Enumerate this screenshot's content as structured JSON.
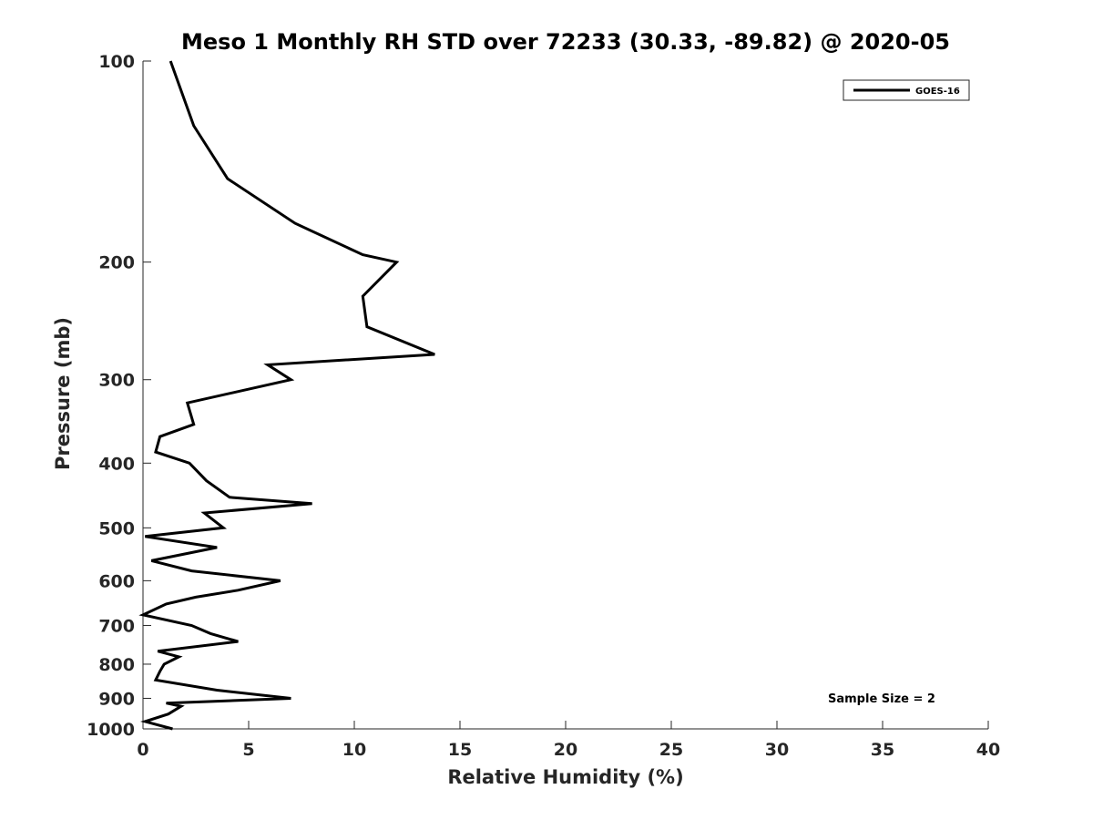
{
  "chart_data": {
    "type": "line",
    "title": "Meso 1 Monthly RH STD over 72233 (30.33, -89.82) @ 2020-05",
    "xlabel": "Relative Humidity (%)",
    "ylabel": "Pressure (mb)",
    "xlim": [
      0,
      40
    ],
    "ylim": [
      100,
      1000
    ],
    "y_scale": "log",
    "y_reversed": true,
    "x_ticks": [
      "0",
      "5",
      "10",
      "15",
      "20",
      "25",
      "30",
      "35",
      "40"
    ],
    "y_ticks": [
      "100",
      "200",
      "300",
      "400",
      "500",
      "600",
      "700",
      "800",
      "900",
      "1000"
    ],
    "grid": false,
    "legend_placement": "top-right",
    "annotation": "Sample Size = 2",
    "series": [
      {
        "name": "GOES-16",
        "color": "#000000",
        "points": [
          [
            1.3,
            100
          ],
          [
            2.4,
            125
          ],
          [
            4.0,
            150
          ],
          [
            7.2,
            175
          ],
          [
            10.4,
            195
          ],
          [
            12.0,
            200
          ],
          [
            10.4,
            225
          ],
          [
            10.6,
            250
          ],
          [
            13.8,
            275
          ],
          [
            5.9,
            285
          ],
          [
            7.0,
            300
          ],
          [
            2.1,
            325
          ],
          [
            2.4,
            350
          ],
          [
            0.8,
            365
          ],
          [
            0.6,
            385
          ],
          [
            2.2,
            400
          ],
          [
            3.0,
            425
          ],
          [
            4.1,
            450
          ],
          [
            8.0,
            460
          ],
          [
            2.9,
            475
          ],
          [
            3.8,
            500
          ],
          [
            0.1,
            515
          ],
          [
            3.5,
            535
          ],
          [
            0.4,
            560
          ],
          [
            2.3,
            580
          ],
          [
            6.5,
            600
          ],
          [
            4.5,
            620
          ],
          [
            2.5,
            635
          ],
          [
            1.1,
            650
          ],
          [
            0.0,
            675
          ],
          [
            2.3,
            700
          ],
          [
            3.2,
            720
          ],
          [
            4.5,
            740
          ],
          [
            0.7,
            765
          ],
          [
            1.7,
            780
          ],
          [
            1.0,
            800
          ],
          [
            0.8,
            820
          ],
          [
            0.6,
            845
          ],
          [
            3.5,
            875
          ],
          [
            7.0,
            900
          ],
          [
            1.1,
            915
          ],
          [
            1.8,
            925
          ],
          [
            1.2,
            950
          ],
          [
            0.1,
            975
          ],
          [
            1.4,
            1000
          ]
        ]
      }
    ]
  }
}
